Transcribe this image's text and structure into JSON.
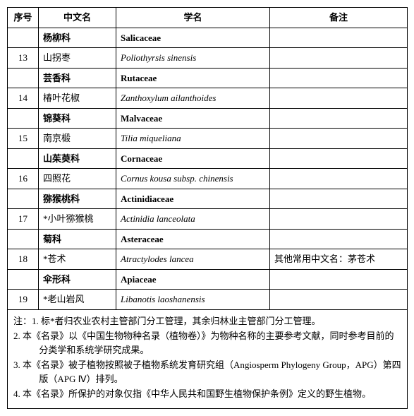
{
  "header": {
    "seq": "序号",
    "cn": "中文名",
    "sci": "学名",
    "rem": "备注"
  },
  "rows": [
    {
      "type": "family",
      "seq": "",
      "cn": "杨柳科",
      "sci": "Salicaceae",
      "rem": ""
    },
    {
      "type": "species",
      "seq": "13",
      "cn": "山拐枣",
      "sci": "Poliothyrsis sinensis",
      "rem": ""
    },
    {
      "type": "family",
      "seq": "",
      "cn": "芸香科",
      "sci": "Rutaceae",
      "rem": ""
    },
    {
      "type": "species",
      "seq": "14",
      "cn": "椿叶花椒",
      "sci": "Zanthoxylum ailanthoides",
      "rem": ""
    },
    {
      "type": "family",
      "seq": "",
      "cn": "锦葵科",
      "sci": "Malvaceae",
      "rem": ""
    },
    {
      "type": "species",
      "seq": "15",
      "cn": "南京椴",
      "sci": "Tilia miqueliana",
      "rem": ""
    },
    {
      "type": "family",
      "seq": "",
      "cn": "山茱萸科",
      "sci": "Cornaceae",
      "rem": ""
    },
    {
      "type": "species",
      "seq": "16",
      "cn": "四照花",
      "sci": "Cornus kousa subsp. chinensis",
      "rem": ""
    },
    {
      "type": "family",
      "seq": "",
      "cn": "猕猴桃科",
      "sci": "Actinidiaceae",
      "rem": ""
    },
    {
      "type": "species",
      "seq": "17",
      "cn": "*小叶猕猴桃",
      "sci": "Actinidia lanceolata",
      "rem": ""
    },
    {
      "type": "family",
      "seq": "",
      "cn": "菊科",
      "sci": "Asteraceae",
      "rem": ""
    },
    {
      "type": "species",
      "seq": "18",
      "cn": "*苍术",
      "sci": "Atractylodes lancea",
      "rem": "其他常用中文名：茅苍术"
    },
    {
      "type": "family",
      "seq": "",
      "cn": "伞形科",
      "sci": "Apiaceae",
      "rem": ""
    },
    {
      "type": "species",
      "seq": "19",
      "cn": "*老山岩风",
      "sci": "Libanotis laoshanensis",
      "rem": ""
    }
  ],
  "notes": [
    "注：1. 标*者归农业农村主管部门分工管理，其余归林业主管部门分工管理。",
    "2. 本《名录》以《中国生物物种名录（植物卷）》为物种名称的主要参考文献，同时参考目前的分类学和系统学研究成果。",
    "3. 本《名录》被子植物按照被子植物系统发育研究组（Angiosperm Phylogeny Group，APG）第四版（APG Ⅳ）排列。",
    "4. 本《名录》所保护的对象仅指《中华人民共和国野生植物保护条例》定义的野生植物。"
  ]
}
